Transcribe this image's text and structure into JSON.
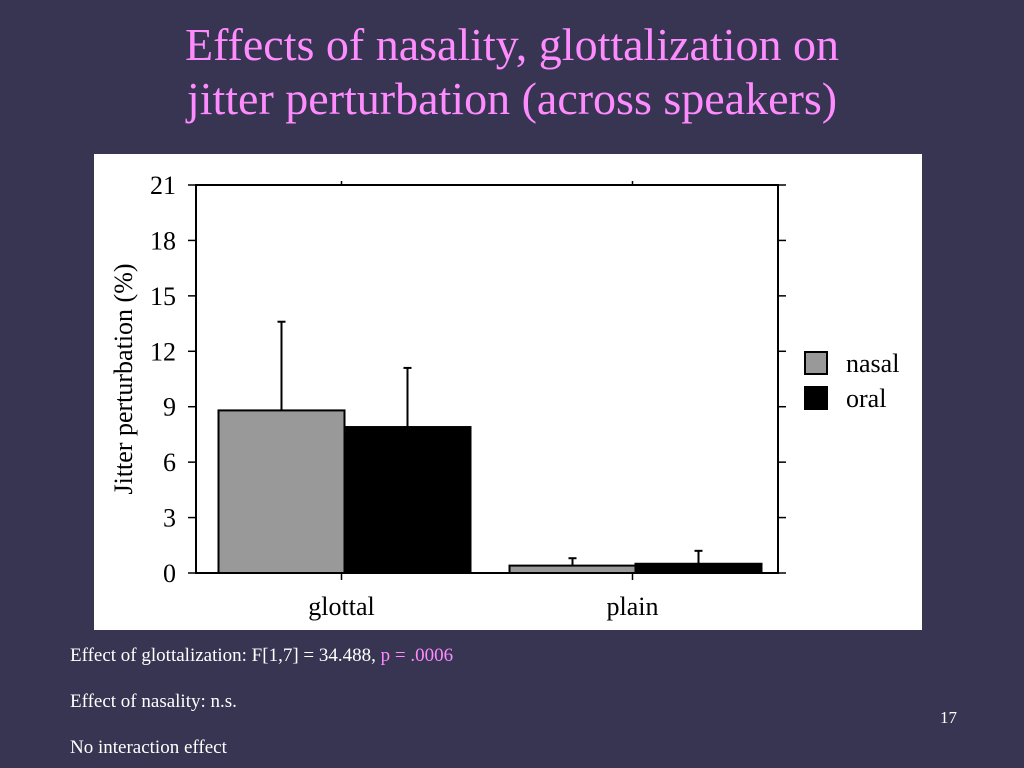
{
  "slide": {
    "title_line1": "Effects of nasality, glottalization on",
    "title_line2": "jitter perturbation (across speakers)",
    "notes": {
      "glottalization_prefix": "Effect of glottalization:  F[1,7] = 34.488, ",
      "glottalization_p": "p = .0006",
      "nasality": "Effect of nasality:  n.s.",
      "interaction": "No interaction effect"
    },
    "page_number": "17"
  },
  "colors": {
    "background": "#373552",
    "title": "#ff8cff",
    "nasal": "#999999",
    "oral": "#000000"
  },
  "chart_data": {
    "type": "bar",
    "ylabel": "Jitter perturbation (%)",
    "xlabel": "",
    "ylim": [
      0,
      21
    ],
    "yticks": [
      0,
      3,
      6,
      9,
      12,
      15,
      18,
      21
    ],
    "categories": [
      "glottal",
      "plain"
    ],
    "series": [
      {
        "name": "nasal",
        "color": "#999999",
        "values": [
          8.8,
          0.4
        ],
        "error": [
          4.8,
          0.4
        ]
      },
      {
        "name": "oral",
        "color": "#000000",
        "values": [
          7.9,
          0.5
        ],
        "error": [
          3.2,
          0.7
        ]
      }
    ],
    "legend_position": "right",
    "grid": false
  }
}
